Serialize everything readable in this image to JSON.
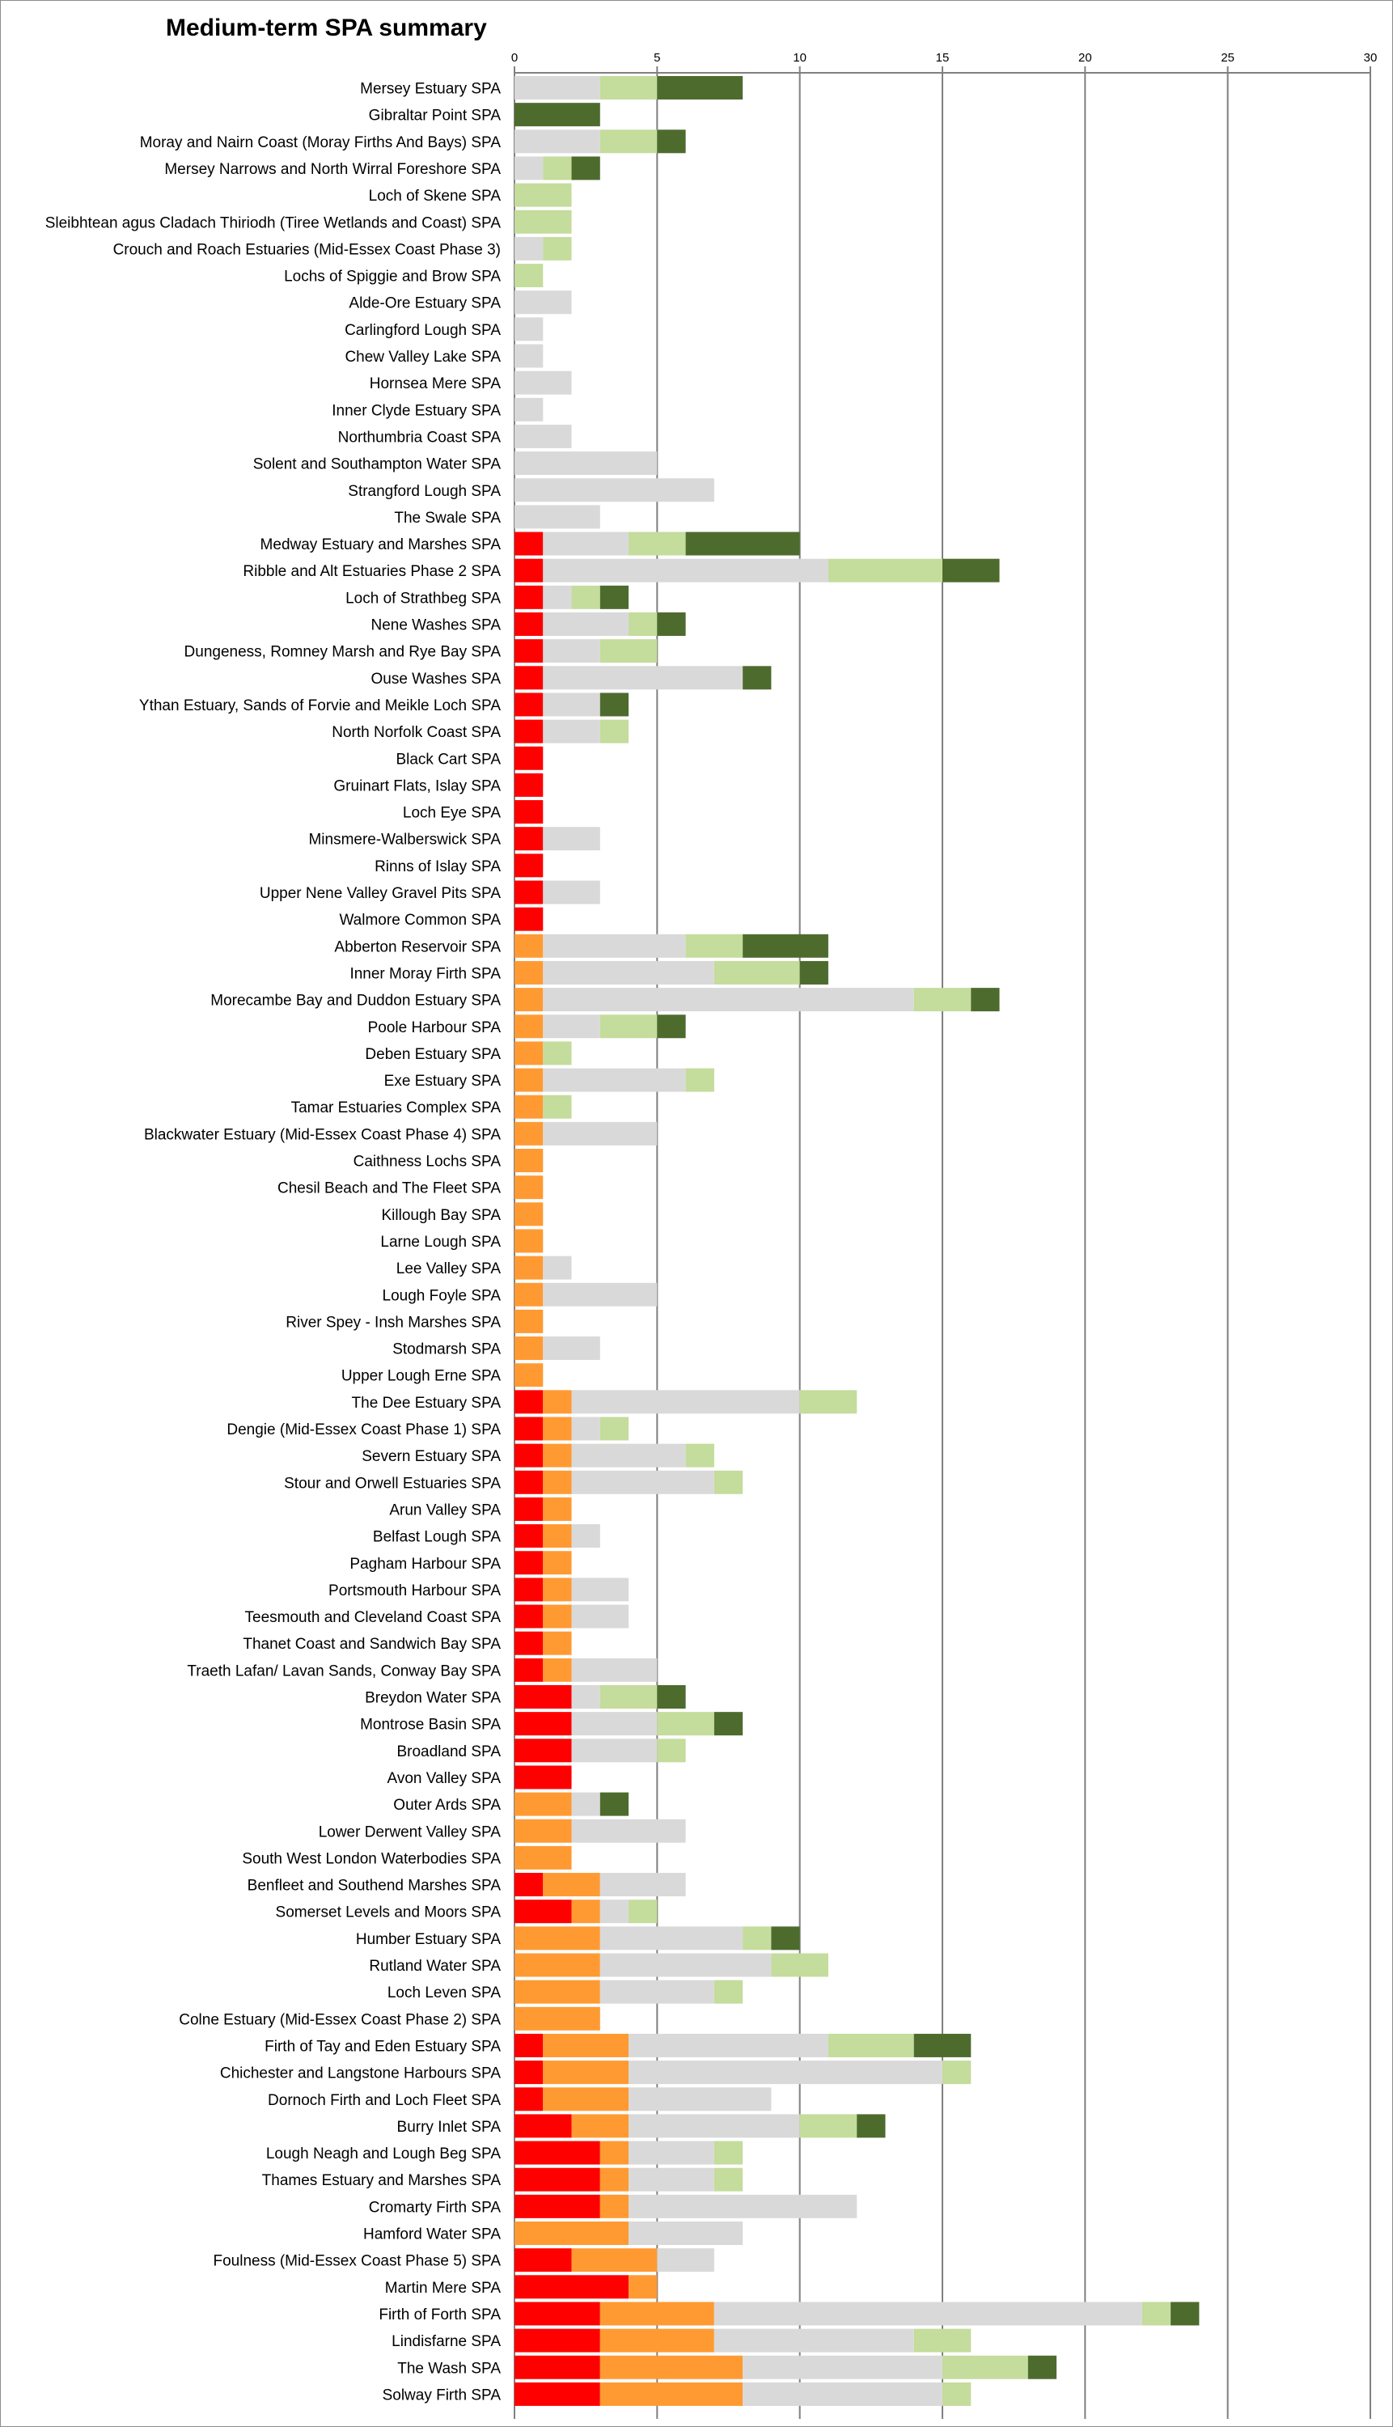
{
  "chart_data": {
    "type": "bar",
    "stacked": true,
    "orientation": "horizontal",
    "title": "Medium-term SPA summary",
    "xlim": [
      0,
      30
    ],
    "xticks": [
      0,
      5,
      10,
      15,
      20,
      25,
      30
    ],
    "grid": true,
    "legend": "none",
    "series_colors": [
      "#ff0000",
      "#ff9a33",
      "#d9d9d9",
      "#c4dc9c",
      "#4e6b2e"
    ],
    "categories": [
      "Mersey Estuary SPA",
      "Gibraltar Point SPA",
      "Moray and Nairn Coast (Moray Firths And Bays) SPA",
      "Mersey Narrows and North Wirral Foreshore SPA",
      "Loch of Skene SPA",
      "Sleibhtean agus Cladach Thiriodh (Tiree Wetlands and Coast) SPA",
      "Crouch and Roach Estuaries (Mid-Essex Coast Phase 3)",
      "Lochs of Spiggie and Brow SPA",
      "Alde-Ore Estuary SPA",
      "Carlingford Lough SPA",
      "Chew Valley Lake SPA",
      "Hornsea Mere SPA",
      "Inner Clyde Estuary SPA",
      "Northumbria Coast SPA",
      "Solent and Southampton Water SPA",
      "Strangford Lough SPA",
      "The Swale SPA",
      "Medway Estuary and Marshes SPA",
      "Ribble and Alt Estuaries Phase 2 SPA",
      "Loch of Strathbeg SPA",
      "Nene Washes SPA",
      "Dungeness, Romney Marsh and Rye Bay SPA",
      "Ouse Washes SPA",
      "Ythan Estuary, Sands of Forvie and Meikle Loch SPA",
      "North Norfolk Coast SPA",
      "Black Cart SPA",
      "Gruinart Flats, Islay SPA",
      "Loch Eye SPA",
      "Minsmere-Walberswick SPA",
      "Rinns of Islay SPA",
      "Upper Nene Valley Gravel Pits SPA",
      "Walmore Common SPA",
      "Abberton Reservoir SPA",
      "Inner Moray Firth SPA",
      "Morecambe Bay and Duddon Estuary SPA",
      "Poole Harbour SPA",
      "Deben Estuary SPA",
      "Exe Estuary SPA",
      "Tamar Estuaries Complex SPA",
      "Blackwater Estuary (Mid-Essex Coast Phase 4) SPA",
      "Caithness Lochs SPA",
      "Chesil Beach and The Fleet SPA",
      "Killough Bay SPA",
      "Larne Lough SPA",
      "Lee Valley SPA",
      "Lough Foyle SPA",
      "River Spey - Insh Marshes SPA",
      "Stodmarsh SPA",
      "Upper Lough Erne SPA",
      "The Dee Estuary SPA",
      "Dengie (Mid-Essex Coast Phase 1) SPA",
      "Severn Estuary SPA",
      "Stour and Orwell Estuaries SPA",
      "Arun Valley SPA",
      "Belfast Lough SPA",
      "Pagham Harbour SPA",
      "Portsmouth Harbour SPA",
      "Teesmouth and Cleveland Coast SPA",
      "Thanet Coast and Sandwich Bay SPA",
      "Traeth Lafan/ Lavan Sands, Conway Bay SPA",
      "Breydon Water SPA",
      "Montrose Basin SPA",
      "Broadland SPA",
      "Avon Valley SPA",
      "Outer Ards SPA",
      "Lower Derwent Valley SPA",
      "South West London Waterbodies SPA",
      "Benfleet and Southend Marshes SPA",
      "Somerset Levels and Moors SPA",
      "Humber Estuary SPA",
      "Rutland Water SPA",
      "Loch Leven SPA",
      "Colne Estuary (Mid-Essex Coast Phase 2) SPA",
      "Firth of Tay and Eden Estuary SPA",
      "Chichester and Langstone Harbours SPA",
      "Dornoch Firth and Loch Fleet SPA",
      "Burry Inlet SPA",
      "Lough Neagh and Lough Beg SPA",
      "Thames Estuary and Marshes SPA",
      "Cromarty Firth SPA",
      "Hamford Water SPA",
      "Foulness (Mid-Essex Coast Phase 5) SPA",
      "Martin Mere SPA",
      "Firth of Forth SPA",
      "Lindisfarne SPA",
      "The Wash SPA",
      "Solway Firth SPA"
    ],
    "series": [
      {
        "values": [
          0,
          0,
          0,
          0,
          0,
          0,
          0,
          0,
          0,
          0,
          0,
          0,
          0,
          0,
          0,
          0,
          0,
          1,
          1,
          1,
          1,
          1,
          1,
          1,
          1,
          1,
          1,
          1,
          1,
          1,
          1,
          1,
          0,
          0,
          0,
          0,
          0,
          0,
          0,
          0,
          0,
          0,
          0,
          0,
          0,
          0,
          0,
          0,
          0,
          1,
          1,
          1,
          1,
          1,
          1,
          1,
          1,
          1,
          1,
          1,
          2,
          2,
          2,
          2,
          0,
          0,
          0,
          1,
          2,
          0,
          0,
          0,
          0,
          1,
          1,
          1,
          2,
          3,
          3,
          3,
          0,
          2,
          4,
          3,
          3,
          3,
          3
        ]
      },
      {
        "values": [
          0,
          0,
          0,
          0,
          0,
          0,
          0,
          0,
          0,
          0,
          0,
          0,
          0,
          0,
          0,
          0,
          0,
          0,
          0,
          0,
          0,
          0,
          0,
          0,
          0,
          0,
          0,
          0,
          0,
          0,
          0,
          0,
          1,
          1,
          1,
          1,
          1,
          1,
          1,
          1,
          1,
          1,
          1,
          1,
          1,
          1,
          1,
          1,
          1,
          1,
          1,
          1,
          1,
          1,
          1,
          1,
          1,
          1,
          1,
          1,
          0,
          0,
          0,
          0,
          2,
          2,
          2,
          2,
          1,
          3,
          3,
          3,
          3,
          3,
          3,
          3,
          2,
          1,
          1,
          1,
          4,
          3,
          1,
          4,
          4,
          5,
          5
        ]
      },
      {
        "values": [
          3,
          0,
          3,
          1,
          0,
          0,
          1,
          0,
          2,
          1,
          1,
          2,
          1,
          2,
          5,
          7,
          3,
          3,
          10,
          1,
          3,
          2,
          7,
          2,
          2,
          0,
          0,
          0,
          2,
          0,
          2,
          0,
          5,
          6,
          13,
          2,
          0,
          5,
          0,
          4,
          0,
          0,
          0,
          0,
          1,
          4,
          0,
          2,
          0,
          8,
          1,
          4,
          5,
          0,
          1,
          0,
          2,
          2,
          0,
          3,
          1,
          3,
          3,
          0,
          1,
          4,
          0,
          3,
          1,
          5,
          6,
          4,
          0,
          7,
          11,
          5,
          6,
          3,
          3,
          8,
          4,
          2,
          0,
          15,
          7,
          7,
          7
        ]
      },
      {
        "values": [
          2,
          0,
          2,
          1,
          2,
          2,
          1,
          1,
          0,
          0,
          0,
          0,
          0,
          0,
          0,
          0,
          0,
          2,
          4,
          1,
          1,
          2,
          0,
          0,
          1,
          0,
          0,
          0,
          0,
          0,
          0,
          0,
          2,
          3,
          2,
          2,
          1,
          1,
          1,
          0,
          0,
          0,
          0,
          0,
          0,
          0,
          0,
          0,
          0,
          2,
          1,
          1,
          1,
          0,
          0,
          0,
          0,
          0,
          0,
          0,
          2,
          2,
          1,
          0,
          0,
          0,
          0,
          0,
          1,
          1,
          2,
          1,
          0,
          3,
          1,
          0,
          2,
          1,
          1,
          0,
          0,
          0,
          0,
          1,
          2,
          3,
          1
        ]
      },
      {
        "values": [
          3,
          3,
          1,
          1,
          0,
          0,
          0,
          0,
          0,
          0,
          0,
          0,
          0,
          0,
          0,
          0,
          0,
          4,
          2,
          1,
          1,
          0,
          1,
          1,
          0,
          0,
          0,
          0,
          0,
          0,
          0,
          0,
          3,
          1,
          1,
          1,
          0,
          0,
          0,
          0,
          0,
          0,
          0,
          0,
          0,
          0,
          0,
          0,
          0,
          0,
          0,
          0,
          0,
          0,
          0,
          0,
          0,
          0,
          0,
          0,
          1,
          1,
          0,
          0,
          1,
          0,
          0,
          0,
          0,
          1,
          0,
          0,
          0,
          2,
          0,
          0,
          1,
          0,
          0,
          0,
          0,
          0,
          0,
          1,
          0,
          1,
          0
        ]
      }
    ]
  }
}
